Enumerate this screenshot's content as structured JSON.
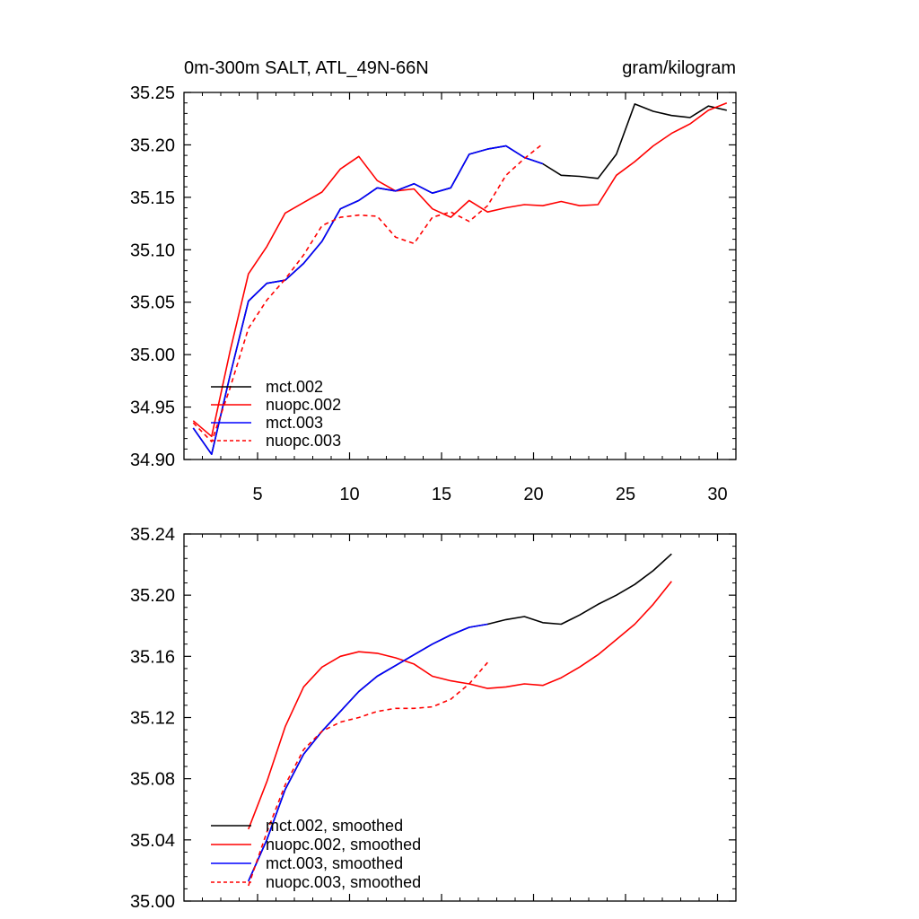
{
  "chart_data": [
    {
      "type": "line",
      "title": "0m-300m SALT, ATL_49N-66N",
      "units": "gram/kilogram",
      "xlim": [
        1,
        31
      ],
      "ylim": [
        34.9,
        35.25
      ],
      "xticks": [
        5,
        10,
        15,
        20,
        25,
        30
      ],
      "yticks": [
        34.9,
        34.95,
        35.0,
        35.05,
        35.1,
        35.15,
        35.2,
        35.25
      ],
      "ytick_labels": [
        "34.90",
        "34.95",
        "35.00",
        "35.05",
        "35.10",
        "35.15",
        "35.20",
        "35.25"
      ],
      "xtick_labels": [
        "5",
        "10",
        "15",
        "20",
        "25",
        "30"
      ],
      "legend_position": "bottom-left",
      "series": [
        {
          "name": "mct.002",
          "color": "#000000",
          "dash": "solid",
          "x": [
            1.5,
            2.5,
            3.5,
            4.5,
            5.5,
            6.5,
            7.5,
            8.5,
            9.5,
            10.5,
            11.5,
            12.5,
            13.5,
            14.5,
            15.5,
            16.5,
            17.5,
            18.5,
            19.5,
            20.5,
            21.5,
            22.5,
            23.5,
            24.5,
            25.5,
            26.5,
            27.5,
            28.5,
            29.5,
            30.5
          ],
          "y": [
            34.93,
            34.905,
            34.98,
            35.051,
            35.068,
            35.071,
            35.087,
            35.108,
            35.139,
            35.147,
            35.159,
            35.156,
            35.163,
            35.154,
            35.159,
            35.191,
            35.196,
            35.199,
            35.188,
            35.182,
            35.171,
            35.17,
            35.168,
            35.191,
            35.239,
            35.232,
            35.228,
            35.226,
            35.237,
            35.233
          ]
        },
        {
          "name": "nuopc.002",
          "color": "#ff0000",
          "dash": "solid",
          "x": [
            1.5,
            2.5,
            3.5,
            4.5,
            5.5,
            6.5,
            7.5,
            8.5,
            9.5,
            10.5,
            11.5,
            12.5,
            13.5,
            14.5,
            15.5,
            16.5,
            17.5,
            18.5,
            19.5,
            20.5,
            21.5,
            22.5,
            23.5,
            24.5,
            25.5,
            26.5,
            27.5,
            28.5,
            29.5,
            30.5
          ],
          "y": [
            34.937,
            34.922,
            35.003,
            35.077,
            35.103,
            35.135,
            35.145,
            35.155,
            35.177,
            35.189,
            35.166,
            35.156,
            35.158,
            35.139,
            35.131,
            35.147,
            35.136,
            35.14,
            35.143,
            35.142,
            35.146,
            35.142,
            35.143,
            35.171,
            35.184,
            35.199,
            35.211,
            35.22,
            35.233,
            35.24
          ]
        },
        {
          "name": "mct.003",
          "color": "#0000ff",
          "dash": "solid",
          "x": [
            1.5,
            2.5,
            3.5,
            4.5,
            5.5,
            6.5,
            7.5,
            8.5,
            9.5,
            10.5,
            11.5,
            12.5,
            13.5,
            14.5,
            15.5,
            16.5,
            17.5,
            18.5,
            19.5,
            20.5
          ],
          "y": [
            34.93,
            34.905,
            34.98,
            35.051,
            35.068,
            35.071,
            35.087,
            35.108,
            35.139,
            35.147,
            35.159,
            35.156,
            35.163,
            35.154,
            35.159,
            35.191,
            35.196,
            35.199,
            35.188,
            35.182
          ]
        },
        {
          "name": "nuopc.003",
          "color": "#ff0000",
          "dash": "dashed",
          "x": [
            1.5,
            2.5,
            3.5,
            4.5,
            5.5,
            6.5,
            7.5,
            8.5,
            9.5,
            10.5,
            11.5,
            12.5,
            13.5,
            14.5,
            15.5,
            16.5,
            17.5,
            18.5,
            19.5,
            20.5
          ],
          "y": [
            34.935,
            34.917,
            34.968,
            35.025,
            35.052,
            35.072,
            35.095,
            35.123,
            35.131,
            35.133,
            35.132,
            35.112,
            35.106,
            35.131,
            35.136,
            35.127,
            35.142,
            35.171,
            35.187,
            35.201
          ]
        }
      ]
    },
    {
      "type": "line",
      "xlim": [
        1,
        31
      ],
      "ylim": [
        35.0,
        35.24
      ],
      "yticks": [
        35.0,
        35.04,
        35.08,
        35.12,
        35.16,
        35.2,
        35.24
      ],
      "ytick_labels": [
        "35.00",
        "35.04",
        "35.08",
        "35.12",
        "35.16",
        "35.20",
        "35.24"
      ],
      "legend_position": "bottom-left",
      "series": [
        {
          "name": "mct.002, smoothed",
          "color": "#000000",
          "dash": "solid",
          "x": [
            4.5,
            5.5,
            6.5,
            7.5,
            8.5,
            9.5,
            10.5,
            11.5,
            12.5,
            13.5,
            14.5,
            15.5,
            16.5,
            17.5,
            18.5,
            19.5,
            20.5,
            21.5,
            22.5,
            23.5,
            24.5,
            25.5,
            26.5,
            27.5
          ],
          "y": [
            35.013,
            35.04,
            35.073,
            35.096,
            35.111,
            35.124,
            35.137,
            35.147,
            35.154,
            35.161,
            35.168,
            35.174,
            35.179,
            35.181,
            35.184,
            35.186,
            35.182,
            35.181,
            35.187,
            35.194,
            35.2,
            35.207,
            35.216,
            35.227
          ]
        },
        {
          "name": "nuopc.002, smoothed",
          "color": "#ff0000",
          "dash": "solid",
          "x": [
            4.5,
            5.5,
            6.5,
            7.5,
            8.5,
            9.5,
            10.5,
            11.5,
            12.5,
            13.5,
            14.5,
            15.5,
            16.5,
            17.5,
            18.5,
            19.5,
            20.5,
            21.5,
            22.5,
            23.5,
            24.5,
            25.5,
            26.5,
            27.5
          ],
          "y": [
            35.047,
            35.078,
            35.114,
            35.14,
            35.153,
            35.16,
            35.163,
            35.162,
            35.159,
            35.155,
            35.147,
            35.144,
            35.142,
            35.139,
            35.14,
            35.142,
            35.141,
            35.146,
            35.153,
            35.161,
            35.171,
            35.181,
            35.194,
            35.209
          ]
        },
        {
          "name": "mct.003, smoothed",
          "color": "#0000ff",
          "dash": "solid",
          "x": [
            4.5,
            5.5,
            6.5,
            7.5,
            8.5,
            9.5,
            10.5,
            11.5,
            12.5,
            13.5,
            14.5,
            15.5,
            16.5,
            17.5
          ],
          "y": [
            35.013,
            35.04,
            35.073,
            35.096,
            35.111,
            35.124,
            35.137,
            35.147,
            35.154,
            35.161,
            35.168,
            35.174,
            35.179,
            35.181
          ]
        },
        {
          "name": "nuopc.003, smoothed",
          "color": "#ff0000",
          "dash": "dashed",
          "x": [
            4.5,
            5.5,
            6.5,
            7.5,
            8.5,
            9.5,
            10.5,
            11.5,
            12.5,
            13.5,
            14.5,
            15.5,
            16.5,
            17.5
          ],
          "y": [
            35.01,
            35.045,
            35.076,
            35.099,
            35.111,
            35.117,
            35.12,
            35.124,
            35.126,
            35.126,
            35.127,
            35.132,
            35.142,
            35.156
          ]
        }
      ]
    }
  ]
}
